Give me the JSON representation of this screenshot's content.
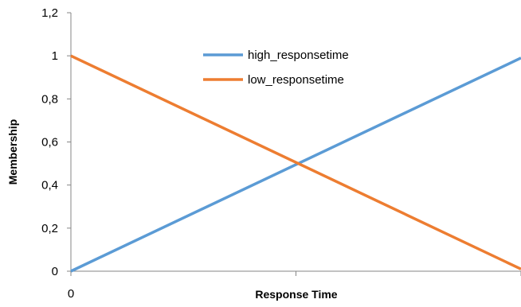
{
  "chart_data": {
    "type": "line",
    "title": "",
    "xlabel": "Response Time",
    "ylabel": "Membership",
    "x": [
      0,
      1
    ],
    "x_tick_labels": [
      "0"
    ],
    "ylim": [
      0,
      1.2
    ],
    "y_ticks": [
      0,
      0.2,
      0.4,
      0.6,
      0.8,
      1,
      1.2
    ],
    "y_tick_labels": [
      "0",
      "0,2",
      "0,4",
      "0,6",
      "0,8",
      "1",
      "1,2"
    ],
    "grid": false,
    "legend_position": "top-center",
    "series": [
      {
        "name": "high_responsetime",
        "color": "#5b9bd5",
        "values": [
          0,
          0.99
        ]
      },
      {
        "name": "low_responsetime",
        "color": "#ed7d31",
        "values": [
          1,
          0.01
        ]
      }
    ]
  }
}
